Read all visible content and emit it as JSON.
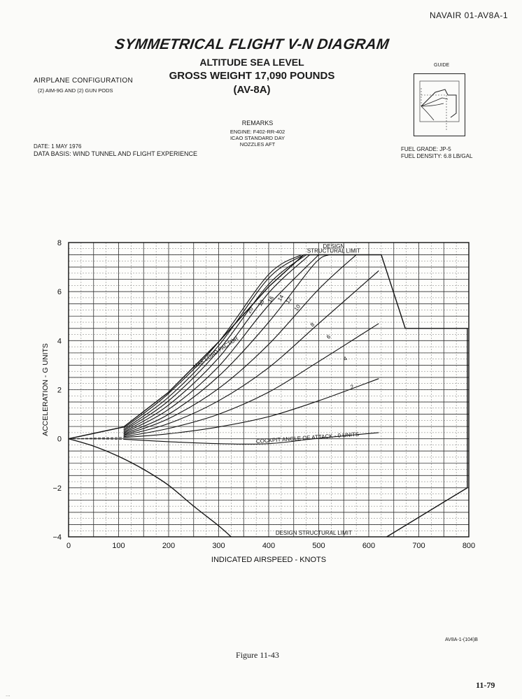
{
  "header": {
    "doc_id": "NAVAIR 01-AV8A-1",
    "title": "SYMMETRICAL FLIGHT V-N DIAGRAM",
    "altitude": "ALTITUDE SEA LEVEL",
    "gross_weight": "GROSS WEIGHT 17,090 POUNDS",
    "model": "(AV-8A)"
  },
  "config": {
    "heading": "AIRPLANE CONFIGURATION",
    "stores": "(2) AIM-9G AND (2) GUN PODS"
  },
  "remarks": {
    "heading": "REMARKS",
    "lines": [
      "ENGINE: F402-RR-402",
      "ICAO STANDARD DAY",
      "NOZZLES AFT"
    ]
  },
  "guide": {
    "label": "GUIDE"
  },
  "date": "DATE: 1 MAY 1976",
  "data_basis": "DATA BASIS: WIND TUNNEL AND FLIGHT EXPERIENCE",
  "fuel": {
    "grade": "FUEL GRADE: JP-5",
    "density": "FUEL DENSITY: 6.8 LB/GAL"
  },
  "chart_data": {
    "type": "line",
    "xlabel": "INDICATED AIRSPEED - KNOTS",
    "ylabel": "ACCELERATION - G UNITS",
    "xlim": [
      0,
      800
    ],
    "ylim": [
      -4,
      8
    ],
    "x_ticks": [
      {
        "value": 0,
        "label": "0"
      },
      {
        "value": 100,
        "label": "100"
      },
      {
        "value": 200,
        "label": "200"
      },
      {
        "value": 300,
        "label": "300"
      },
      {
        "value": 400,
        "label": "400"
      },
      {
        "value": 500,
        "label": "500"
      },
      {
        "value": 600,
        "label": "600"
      },
      {
        "value": 700,
        "label": "700"
      },
      {
        "value": 800,
        "label": "800"
      }
    ],
    "y_ticks": [
      {
        "value": -4,
        "label": "−4"
      },
      {
        "value": -2,
        "label": "−2"
      },
      {
        "value": 0,
        "label": "0"
      },
      {
        "value": 2,
        "label": "2"
      },
      {
        "value": 4,
        "label": "4"
      },
      {
        "value": 6,
        "label": "6"
      },
      {
        "value": 8,
        "label": "8"
      }
    ],
    "grid": true,
    "envelope": [
      [
        0,
        0
      ],
      [
        110,
        0.48
      ],
      [
        200,
        1.9
      ],
      [
        300,
        3.95
      ],
      [
        400,
        6.2
      ],
      [
        470,
        7.5
      ],
      [
        625,
        7.5
      ],
      [
        673,
        4.5
      ],
      [
        797,
        4.5
      ],
      [
        797,
        -2
      ],
      [
        636,
        -4
      ]
    ],
    "negative_boundary": [
      [
        0,
        0
      ],
      [
        50,
        -0.3
      ],
      [
        100,
        -0.72
      ],
      [
        150,
        -1.25
      ],
      [
        200,
        -1.9
      ],
      [
        250,
        -2.75
      ],
      [
        300,
        -3.55
      ],
      [
        325,
        -4
      ]
    ],
    "aoa_curves": [
      {
        "label": "0 UNITS",
        "points": [
          [
            110,
            -0.02
          ],
          [
            200,
            -0.12
          ],
          [
            300,
            -0.2
          ],
          [
            400,
            -0.2
          ],
          [
            500,
            0.02
          ],
          [
            620,
            0.25
          ]
        ]
      },
      {
        "label": "2",
        "points": [
          [
            110,
            0.05
          ],
          [
            200,
            0.2
          ],
          [
            300,
            0.48
          ],
          [
            400,
            0.9
          ],
          [
            500,
            1.55
          ],
          [
            620,
            2.45
          ]
        ]
      },
      {
        "label": "4",
        "points": [
          [
            110,
            0.08
          ],
          [
            200,
            0.42
          ],
          [
            300,
            1.0
          ],
          [
            400,
            1.9
          ],
          [
            500,
            3.15
          ],
          [
            620,
            4.7
          ]
        ]
      },
      {
        "label": "6",
        "points": [
          [
            110,
            0.12
          ],
          [
            200,
            0.62
          ],
          [
            300,
            1.55
          ],
          [
            400,
            2.9
          ],
          [
            500,
            4.7
          ],
          [
            620,
            6.85
          ]
        ]
      },
      {
        "label": "8",
        "points": [
          [
            110,
            0.15
          ],
          [
            200,
            0.82
          ],
          [
            300,
            2.05
          ],
          [
            400,
            3.85
          ],
          [
            500,
            6.1
          ],
          [
            575,
            7.5
          ]
        ]
      },
      {
        "label": "10",
        "points": [
          [
            110,
            0.19
          ],
          [
            200,
            1.0
          ],
          [
            300,
            2.55
          ],
          [
            400,
            4.75
          ],
          [
            490,
            7.1
          ],
          [
            520,
            7.5
          ]
        ]
      },
      {
        "label": "12",
        "points": [
          [
            110,
            0.23
          ],
          [
            200,
            1.2
          ],
          [
            300,
            2.95
          ],
          [
            400,
            5.45
          ],
          [
            500,
            7.5
          ]
        ]
      },
      {
        "label": "14",
        "points": [
          [
            110,
            0.27
          ],
          [
            200,
            1.38
          ],
          [
            300,
            3.3
          ],
          [
            400,
            5.95
          ],
          [
            482,
            7.5
          ]
        ]
      },
      {
        "label": "16",
        "points": [
          [
            110,
            0.32
          ],
          [
            200,
            1.55
          ],
          [
            300,
            3.6
          ],
          [
            400,
            6.3
          ],
          [
            475,
            7.5
          ]
        ]
      },
      {
        "label": "18",
        "points": [
          [
            110,
            0.37
          ],
          [
            200,
            1.7
          ],
          [
            300,
            3.8
          ],
          [
            400,
            6.55
          ],
          [
            470,
            7.5
          ]
        ]
      },
      {
        "label": "20",
        "points": [
          [
            110,
            0.43
          ],
          [
            200,
            1.85
          ],
          [
            300,
            3.95
          ],
          [
            400,
            6.7
          ],
          [
            465,
            7.5
          ]
        ]
      }
    ],
    "annotations": {
      "design_upper_1": "DESIGN",
      "design_upper_2": "STRUCTURAL LIMIT",
      "design_lower": "DESIGN STRUCTURAL LIMIT",
      "max_load_factor": "MAX LOAD FACTOR",
      "cockpit_aoa": "COCKPIT ANGLE OF ATTACK - 0 UNITS"
    }
  },
  "footer": {
    "figure_id": "AV8A-1-(104)B",
    "caption": "Figure 11-43",
    "page_number": "11-79",
    "corner_mark": "..."
  }
}
